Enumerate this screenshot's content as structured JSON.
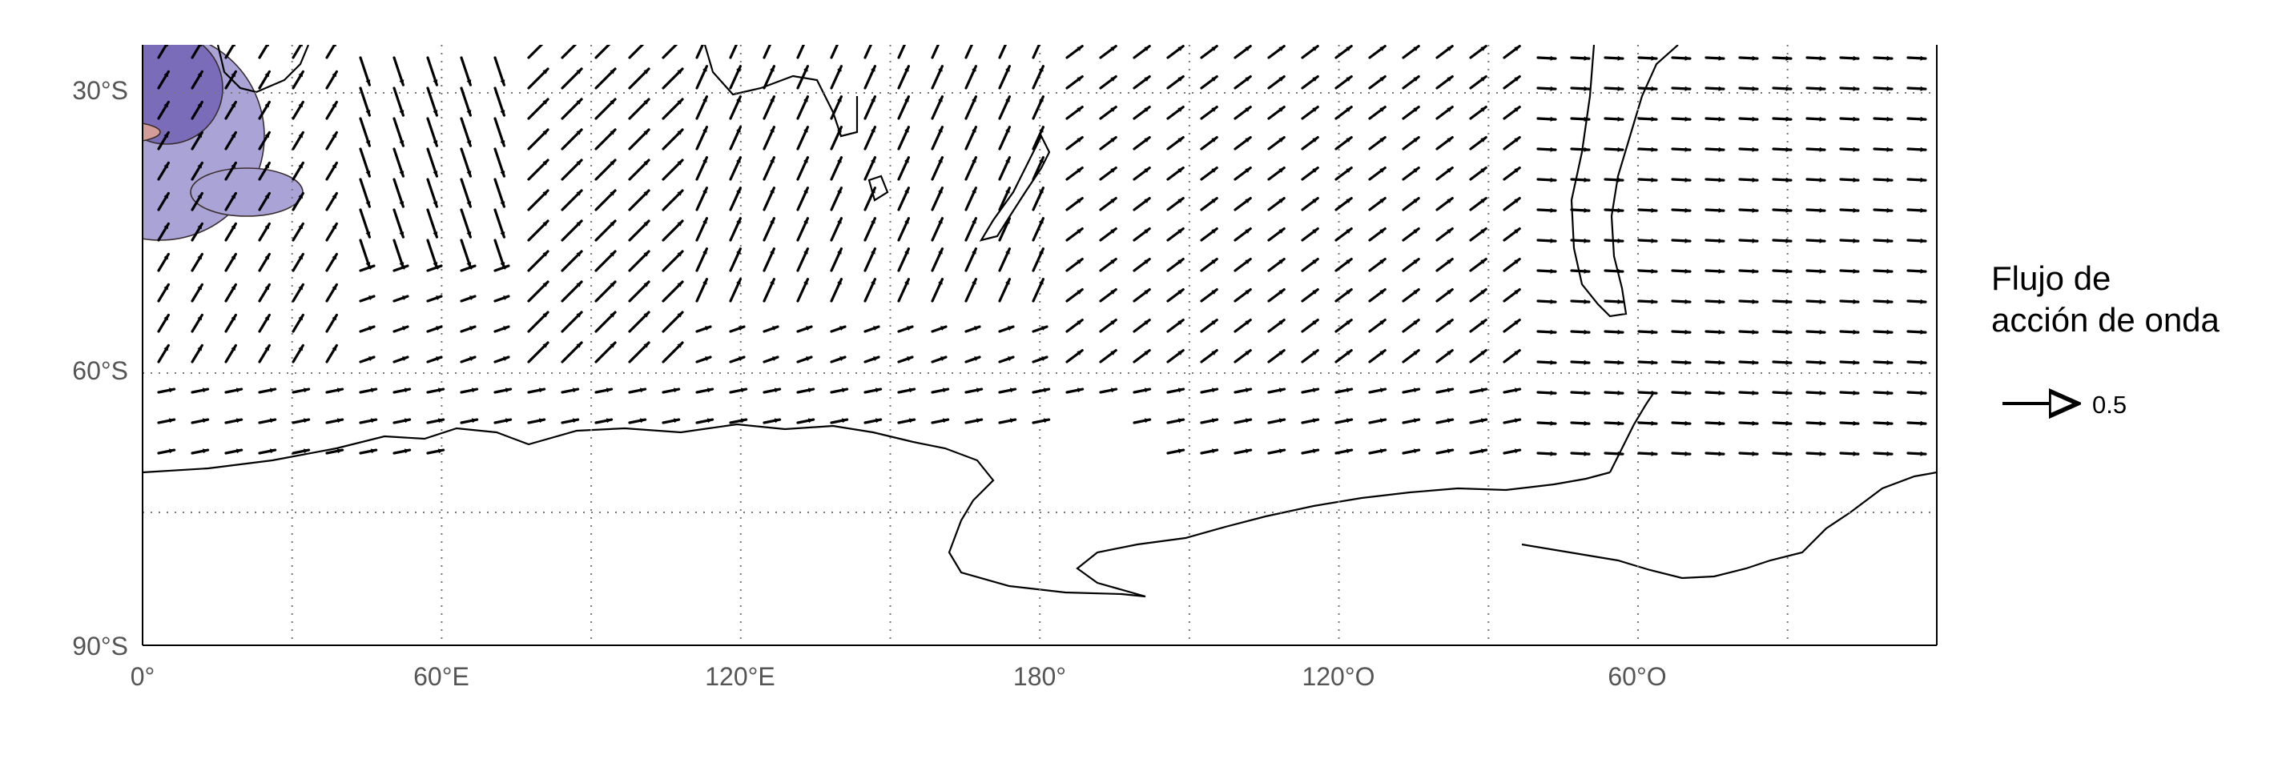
{
  "map": {
    "lat_ticks": [
      "30°S",
      "60°S",
      "90°S"
    ],
    "lon_ticks": [
      "0°",
      "60°E",
      "120°E",
      "180°",
      "120°O",
      "60°O"
    ],
    "colors": {
      "positive_light": "#d39e99",
      "positive_dark": "#b46a62",
      "negative_light": "#aaa3d6",
      "negative_dark": "#7b6cba",
      "coast": "#000000",
      "grid": "#777777",
      "arrow": "#000000"
    }
  },
  "legend": {
    "title_line1": "Flujo de",
    "title_line2": "acción de onda",
    "reference_value": "0.5"
  }
}
